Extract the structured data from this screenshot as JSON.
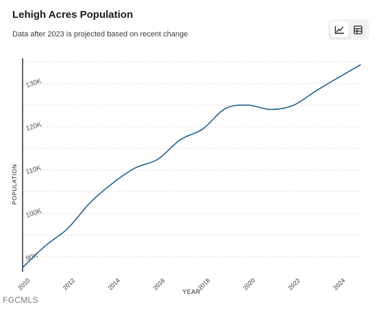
{
  "header": {
    "title": "Lehigh Acres Population",
    "subtitle": "Data after 2023 is projected based on recent change"
  },
  "toolbar": {
    "chart_view_icon": "line-chart-icon",
    "table_view_icon": "table-grid-icon",
    "active_view": "chart"
  },
  "watermark": "FGCMLS",
  "colors": {
    "line": "#1f5f8b",
    "grid": "#d9d9d9",
    "axis": "#222222",
    "text": "#555555"
  },
  "chart_data": {
    "type": "line",
    "xlabel": "YEAR",
    "ylabel": "POPULATION",
    "xlim": [
      2010,
      2025
    ],
    "ylim": [
      86500,
      135800
    ],
    "x_ticks": [
      {
        "value": 2010,
        "label": "2010"
      },
      {
        "value": 2012,
        "label": "2012"
      },
      {
        "value": 2014,
        "label": "2014"
      },
      {
        "value": 2016,
        "label": "2016"
      },
      {
        "value": 2018,
        "label": "2018"
      },
      {
        "value": 2020,
        "label": "2020"
      },
      {
        "value": 2022,
        "label": "2022"
      },
      {
        "value": 2024,
        "label": "2024"
      }
    ],
    "y_ticks": [
      {
        "value": 90000,
        "label": "90K"
      },
      {
        "value": 100000,
        "label": "100K"
      },
      {
        "value": 110000,
        "label": "110K"
      },
      {
        "value": 120000,
        "label": "120K"
      },
      {
        "value": 130000,
        "label": "130K"
      }
    ],
    "grid": true,
    "legend": "none",
    "series": [
      {
        "x": [
          2010,
          2011,
          2012,
          2013,
          2014,
          2015,
          2016,
          2017,
          2018,
          2019,
          2020,
          2021,
          2022,
          2023,
          2024,
          2025
        ],
        "values": [
          87500,
          92500,
          96500,
          102500,
          107000,
          110500,
          112500,
          117000,
          119500,
          124200,
          125000,
          124000,
          124900,
          128200,
          131300,
          134300
        ]
      }
    ]
  }
}
